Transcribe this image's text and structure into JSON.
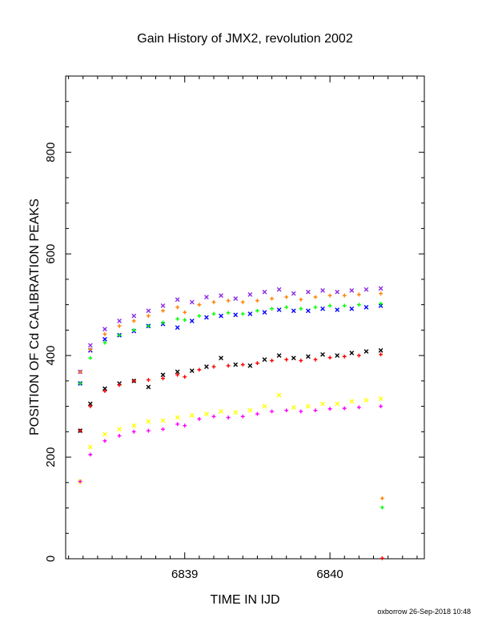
{
  "chart_data": {
    "type": "scatter",
    "title": "Gain History of JMX2, revolution 2002",
    "xlabel": "TIME IN IJD",
    "ylabel": "POSITION OF Cd CALIBRATION PEAKS",
    "xlim": [
      6838.18,
      6840.65
    ],
    "ylim": [
      0,
      950
    ],
    "x_ticks": [
      6839,
      6840
    ],
    "y_ticks": [
      0,
      200,
      400,
      600,
      800
    ],
    "grid": false,
    "legend": "none",
    "footer": "oxborrow 26-Sep-2018 10:48",
    "series": [
      {
        "marker": "x",
        "color": "#8a2be2",
        "x": [
          6838.28,
          6838.35,
          6838.45,
          6838.55,
          6838.65,
          6838.75,
          6838.85,
          6838.95,
          6839.05,
          6839.15,
          6839.25,
          6839.35,
          6839.45,
          6839.55,
          6839.65,
          6839.75,
          6839.85,
          6839.95,
          6840.05,
          6840.15,
          6840.25,
          6840.35
        ],
        "y": [
          368,
          420,
          452,
          468,
          478,
          488,
          498,
          510,
          505,
          515,
          518,
          512,
          520,
          525,
          530,
          522,
          525,
          528,
          525,
          528,
          530,
          532
        ]
      },
      {
        "marker": "x",
        "color": "#0000ff",
        "x": [
          6838.28,
          6838.35,
          6838.45,
          6838.55,
          6838.65,
          6838.75,
          6838.85,
          6838.95,
          6839.05,
          6839.15,
          6839.25,
          6839.35,
          6839.45,
          6839.55,
          6839.65,
          6839.75,
          6839.85,
          6839.95,
          6840.05,
          6840.15,
          6840.25,
          6840.35
        ],
        "y": [
          345,
          410,
          432,
          440,
          448,
          458,
          462,
          455,
          468,
          475,
          478,
          480,
          482,
          485,
          490,
          488,
          488,
          492,
          490,
          492,
          495,
          498
        ]
      },
      {
        "marker": "+",
        "color": "#ff8000",
        "x": [
          6838.28,
          6838.35,
          6838.45,
          6838.55,
          6838.65,
          6838.75,
          6838.85,
          6838.95,
          6839.0,
          6839.1,
          6839.2,
          6839.3,
          6839.4,
          6839.5,
          6839.6,
          6839.7,
          6839.8,
          6839.9,
          6840.0,
          6840.1,
          6840.2,
          6840.35
        ],
        "y": [
          368,
          412,
          442,
          458,
          468,
          478,
          488,
          495,
          485,
          500,
          505,
          508,
          505,
          508,
          512,
          515,
          510,
          515,
          518,
          518,
          520,
          522
        ]
      },
      {
        "marker": "+",
        "color": "#00ff00",
        "x": [
          6838.28,
          6838.35,
          6838.45,
          6838.55,
          6838.65,
          6838.75,
          6838.85,
          6838.95,
          6839.0,
          6839.1,
          6839.2,
          6839.3,
          6839.4,
          6839.5,
          6839.6,
          6839.7,
          6839.8,
          6839.9,
          6840.0,
          6840.1,
          6840.2,
          6840.35
        ],
        "y": [
          345,
          395,
          425,
          440,
          450,
          458,
          465,
          472,
          470,
          478,
          482,
          484,
          482,
          488,
          492,
          495,
          492,
          495,
          498,
          498,
          500,
          502
        ]
      },
      {
        "marker": "x",
        "color": "#000000",
        "x": [
          6838.28,
          6838.35,
          6838.45,
          6838.55,
          6838.65,
          6838.75,
          6838.85,
          6838.95,
          6839.05,
          6839.15,
          6839.25,
          6839.35,
          6839.45,
          6839.55,
          6839.65,
          6839.75,
          6839.85,
          6839.95,
          6840.05,
          6840.15,
          6840.25,
          6840.35
        ],
        "y": [
          252,
          305,
          335,
          345,
          350,
          338,
          362,
          368,
          370,
          378,
          395,
          382,
          380,
          392,
          400,
          395,
          398,
          402,
          400,
          405,
          408,
          410
        ]
      },
      {
        "marker": "+",
        "color": "#ff0000",
        "x": [
          6838.28,
          6838.35,
          6838.45,
          6838.55,
          6838.65,
          6838.75,
          6838.85,
          6838.95,
          6839.0,
          6839.1,
          6839.2,
          6839.3,
          6839.4,
          6839.5,
          6839.6,
          6839.7,
          6839.8,
          6839.9,
          6840.0,
          6840.1,
          6840.2,
          6840.35
        ],
        "y": [
          252,
          300,
          330,
          342,
          350,
          352,
          355,
          362,
          358,
          372,
          378,
          380,
          382,
          385,
          390,
          392,
          390,
          392,
          396,
          398,
          400,
          402
        ]
      },
      {
        "marker": "x",
        "color": "#ffff00",
        "x": [
          6838.28,
          6838.35,
          6838.45,
          6838.55,
          6838.65,
          6838.75,
          6838.85,
          6838.95,
          6839.05,
          6839.15,
          6839.25,
          6839.35,
          6839.45,
          6839.55,
          6839.65,
          6839.75,
          6839.85,
          6839.95,
          6840.05,
          6840.15,
          6840.25,
          6840.35
        ],
        "y": [
          152,
          220,
          245,
          255,
          262,
          270,
          272,
          278,
          282,
          285,
          290,
          288,
          292,
          300,
          322,
          298,
          300,
          305,
          305,
          310,
          312,
          315
        ]
      },
      {
        "marker": "+",
        "color": "#ff00ff",
        "x": [
          6838.28,
          6838.35,
          6838.45,
          6838.55,
          6838.65,
          6838.75,
          6838.85,
          6838.95,
          6839.0,
          6839.1,
          6839.2,
          6839.3,
          6839.4,
          6839.5,
          6839.6,
          6839.7,
          6839.8,
          6839.9,
          6840.0,
          6840.1,
          6840.2,
          6840.35
        ],
        "y": [
          152,
          205,
          232,
          242,
          250,
          252,
          255,
          265,
          262,
          275,
          280,
          278,
          280,
          285,
          290,
          292,
          290,
          292,
          295,
          296,
          298,
          300
        ]
      },
      {
        "marker": "+",
        "color": "#ff8000",
        "x": [
          6840.36
        ],
        "y": [
          119
        ]
      },
      {
        "marker": "+",
        "color": "#00ff00",
        "x": [
          6840.36
        ],
        "y": [
          101
        ]
      },
      {
        "marker": "+",
        "color": "#ff0000",
        "x": [
          6840.36
        ],
        "y": [
          1
        ]
      }
    ]
  }
}
